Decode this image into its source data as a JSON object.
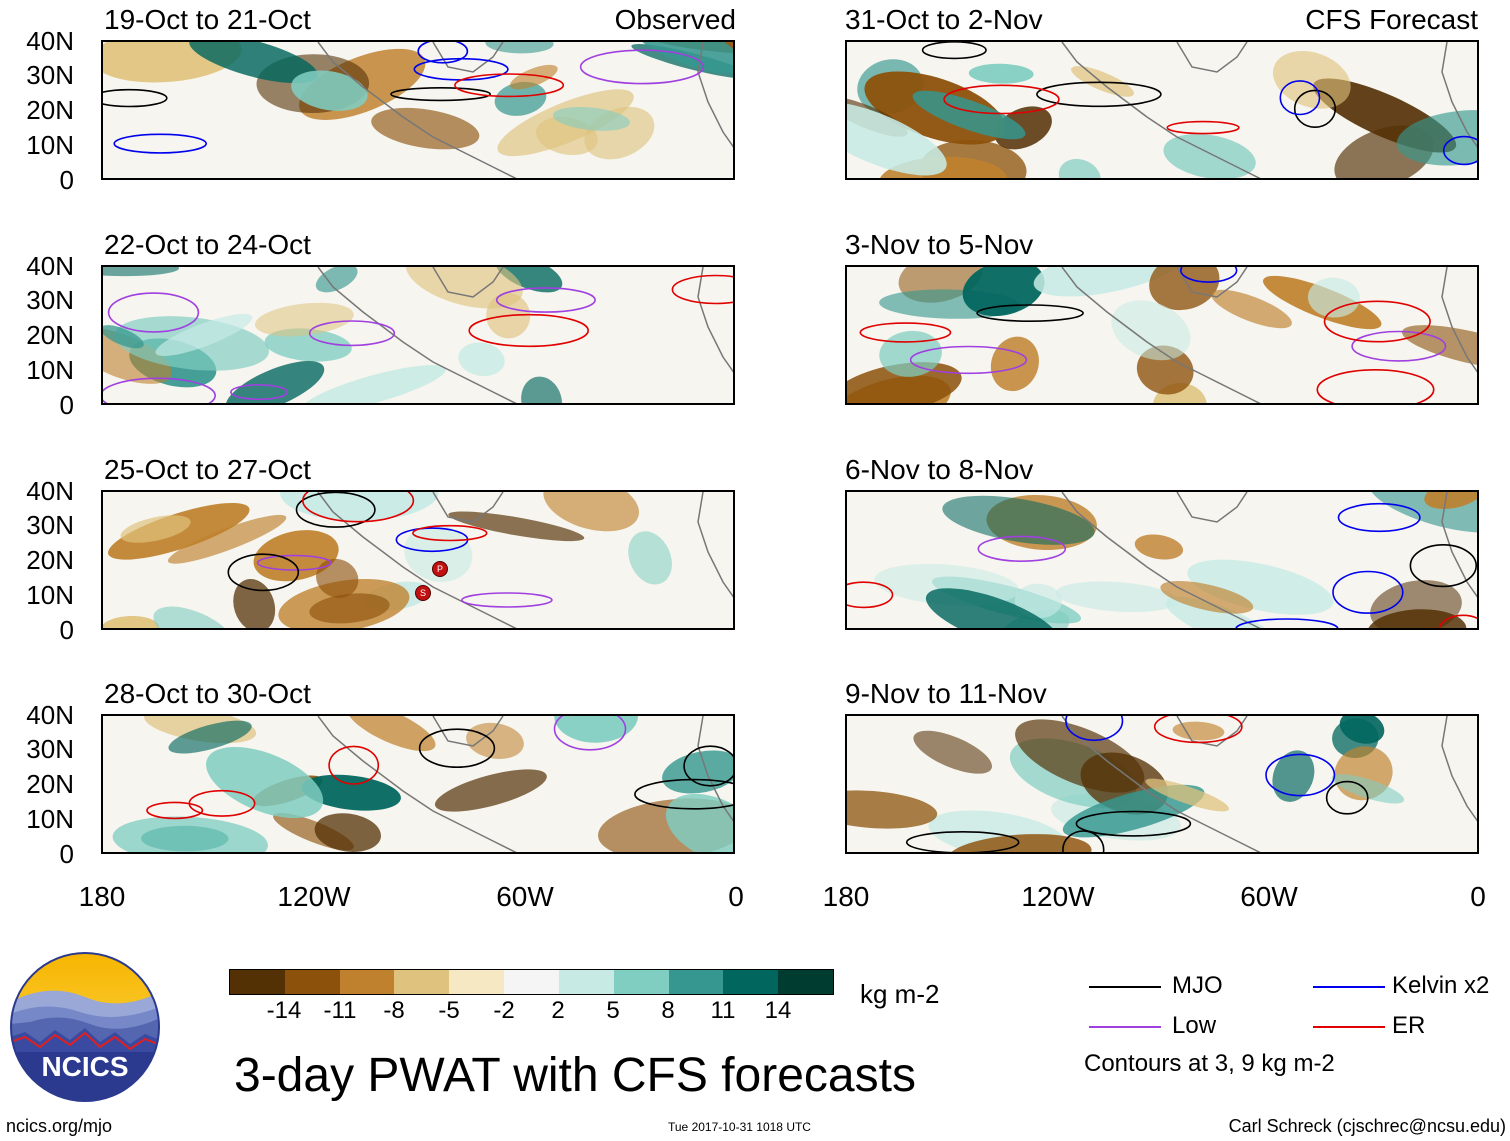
{
  "header": {
    "observed_label": "Observed",
    "forecast_label": "CFS Forecast"
  },
  "panels": {
    "observed": [
      {
        "title": "19-Oct to 21-Oct"
      },
      {
        "title": "22-Oct to 24-Oct"
      },
      {
        "title": "25-Oct to 27-Oct"
      },
      {
        "title": "28-Oct to 30-Oct"
      }
    ],
    "forecast": [
      {
        "title": "31-Oct to 2-Nov"
      },
      {
        "title": "3-Nov to 5-Nov"
      },
      {
        "title": "6-Nov to 8-Nov"
      },
      {
        "title": "9-Nov to 11-Nov"
      }
    ]
  },
  "axes": {
    "lat_labels": [
      "40N",
      "30N",
      "20N",
      "10N",
      "0"
    ],
    "lon_labels": [
      "180",
      "120W",
      "60W",
      "0"
    ]
  },
  "colorbar": {
    "units": "kg m-2",
    "ticks": [
      "-14",
      "-11",
      "-8",
      "-5",
      "-2",
      "2",
      "5",
      "8",
      "11",
      "14"
    ],
    "colors": [
      "#543005",
      "#8c510a",
      "#bf812d",
      "#dfc27d",
      "#f6e8c3",
      "#f5f5f5",
      "#c7eae5",
      "#80cdc1",
      "#35978f",
      "#01665e",
      "#003c30"
    ]
  },
  "legend": {
    "items": [
      {
        "label": "MJO",
        "color": "#000000"
      },
      {
        "label": "Kelvin x2",
        "color": "#0000ee"
      },
      {
        "label": "Low",
        "color": "#a040e0"
      },
      {
        "label": "ER",
        "color": "#e00000"
      }
    ],
    "note": "Contours at 3, 9 kg m-2"
  },
  "storm_markers": {
    "p": "P",
    "s": "S"
  },
  "footer": {
    "logo_text": "NCICS",
    "title": "3-day PWAT with CFS forecasts",
    "url": "ncics.org/mjo",
    "timestamp": "Tue 2017-10-31 1018 UTC",
    "author": "Carl Schreck (cjschrec@ncsu.edu)"
  }
}
